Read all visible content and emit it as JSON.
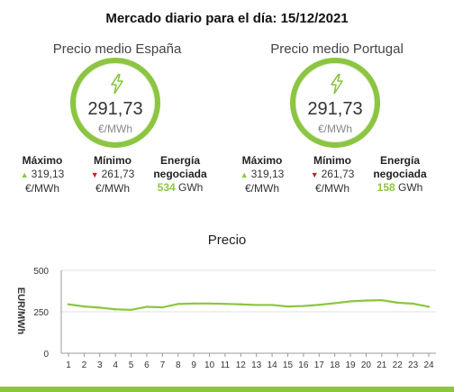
{
  "header": {
    "title": "Mercado diario para el día: 15/12/2021"
  },
  "spain": {
    "title": "Precio medio España",
    "price": "291,73",
    "unit": "€/MWh",
    "max_label": "Máximo",
    "max_value": "319,13",
    "max_unit": "€/MWh",
    "min_label": "Mínimo",
    "min_value": "261,73",
    "min_unit": "€/MWh",
    "energy_label_1": "Energía",
    "energy_label_2": "negociada",
    "energy_value": "534",
    "energy_unit": "GWh"
  },
  "portugal": {
    "title": "Precio medio Portugal",
    "price": "291,73",
    "unit": "€/MWh",
    "max_label": "Máximo",
    "max_value": "319,13",
    "max_unit": "€/MWh",
    "min_label": "Mínimo",
    "min_value": "261,73",
    "min_unit": "€/MWh",
    "energy_label_1": "Energía",
    "energy_label_2": "negociada",
    "energy_value": "158",
    "energy_unit": "GWh"
  },
  "colors": {
    "accent": "#8cc542",
    "down": "#d22020",
    "up": "#8cc542"
  },
  "icons": {
    "gauge_icon": "lightning-bolt-icon",
    "max_icon": "triangle-up-icon",
    "min_icon": "triangle-down-icon"
  },
  "chart_data": {
    "type": "line",
    "title": "Precio",
    "xlabel": "",
    "ylabel": "EUR/MWh",
    "ylim": [
      0,
      500
    ],
    "yticks": [
      0,
      250,
      500
    ],
    "x": [
      1,
      2,
      3,
      4,
      5,
      6,
      7,
      8,
      9,
      10,
      11,
      12,
      13,
      14,
      15,
      16,
      17,
      18,
      19,
      20,
      21,
      22,
      23,
      24
    ],
    "series": [
      {
        "values": [
          295,
          282,
          275,
          265,
          262,
          280,
          277,
          297,
          300,
          300,
          298,
          295,
          291,
          291,
          282,
          285,
          292,
          302,
          313,
          318,
          320,
          305,
          299,
          280
        ]
      }
    ],
    "grid": true,
    "color": "#8cc542"
  }
}
